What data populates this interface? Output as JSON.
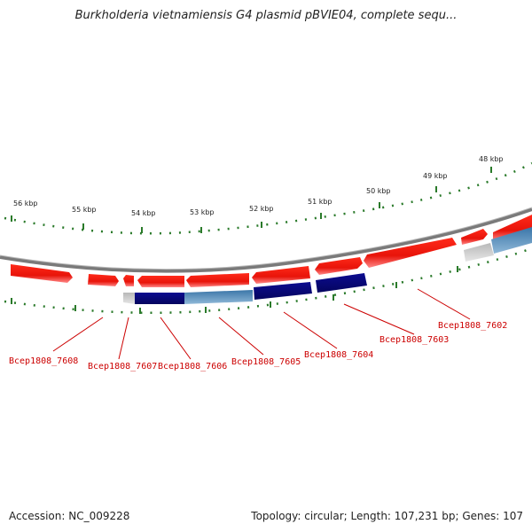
{
  "title": "Burkholderia vietnamiensis G4 plasmid pBVIE04, complete sequ...",
  "accession": "Accession: NC_009228",
  "topology_info": "Topology: circular; Length: 107,231 bp; Genes: 107",
  "ruler_labels": [
    "56 kbp",
    "55 kbp",
    "54 kbp",
    "53 kbp",
    "52 kbp",
    "51 kbp",
    "50 kbp",
    "49 kbp",
    "48 kbp"
  ],
  "gene_labels": [
    "Bcep1808_7608",
    "Bcep1808_7607",
    "Bcep1808_7606",
    "Bcep1808_7605",
    "Bcep1808_7604",
    "Bcep1808_7603",
    "Bcep1808_7602"
  ],
  "colors": {
    "forward_gene": "#e8140a",
    "reverse_gene_dark": "#0b0b80",
    "reverse_gene_light": "#4a85b5",
    "pseudo_gene": "#c8c8c8",
    "backbone": "#808080",
    "tick": "#2a7a2a",
    "label": "#cc0000"
  }
}
